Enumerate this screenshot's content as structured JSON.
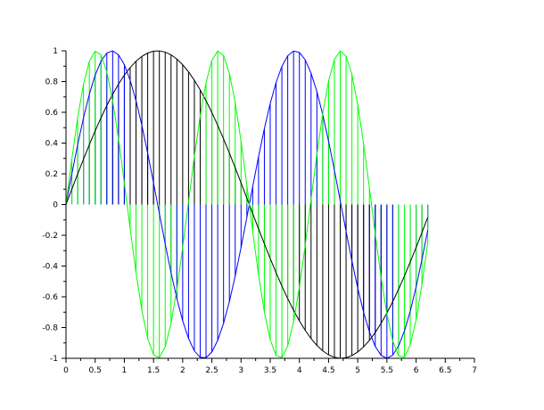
{
  "chart_data": {
    "type": "line",
    "title": "",
    "xlabel": "",
    "ylabel": "",
    "xlim": [
      0,
      7
    ],
    "ylim": [
      -1,
      1
    ],
    "grid": false,
    "x_step": 0.1,
    "x_range": [
      0,
      6.2
    ],
    "stems": true,
    "xticks": [
      "0",
      "0.5",
      "1",
      "1.5",
      "2",
      "2.5",
      "3",
      "3.5",
      "4",
      "4.5",
      "5",
      "5.5",
      "6",
      "6.5",
      "7"
    ],
    "yticks": [
      "-1",
      "-0.8",
      "-0.6",
      "-0.4",
      "-0.2",
      "0",
      "0.2",
      "0.4",
      "0.6",
      "0.8",
      "1"
    ],
    "series": [
      {
        "function": "sin(x)",
        "color": "#000000"
      },
      {
        "function": "sin(2x)",
        "color": "#0000ff"
      },
      {
        "function": "sin(3x)",
        "color": "#00ff00"
      }
    ]
  }
}
